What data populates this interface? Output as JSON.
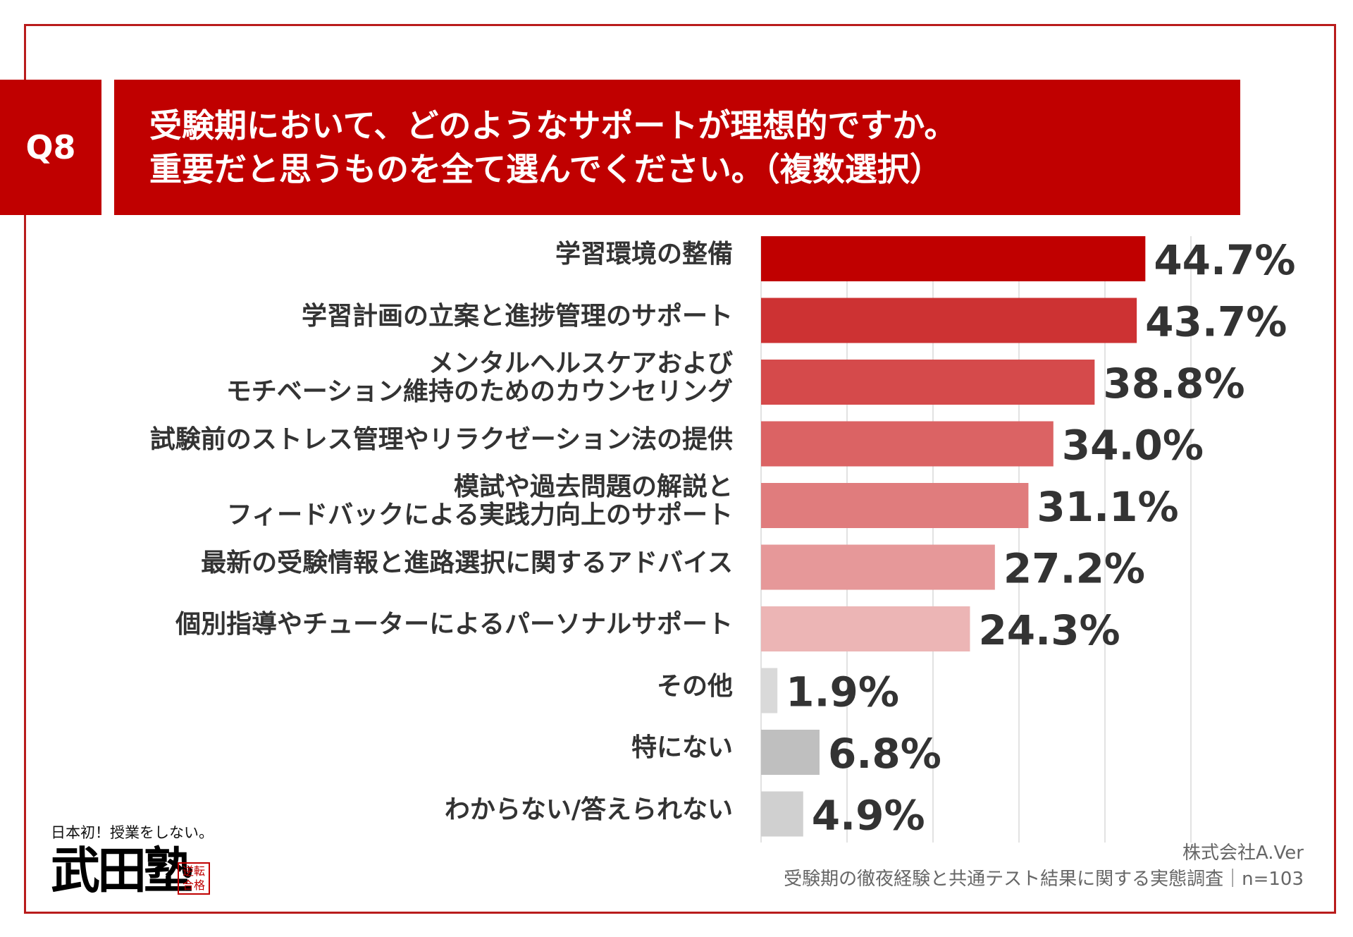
{
  "question": {
    "number": "Q8",
    "title_line1": "受験期において、どのようなサポートが理想的ですか。",
    "title_line2": "重要だと思うものを全て選んでください。（複数選択）"
  },
  "chart_data": {
    "type": "bar",
    "orientation": "horizontal",
    "categories": [
      [
        "学習環境の整備"
      ],
      [
        "学習計画の立案と進捗管理のサポート"
      ],
      [
        "メンタルヘルスケアおよび",
        "モチベーション維持のためのカウンセリング"
      ],
      [
        "試験前のストレス管理やリラクゼーション法の提供"
      ],
      [
        "模試や過去問題の解説と",
        "フィードバックによる実践力向上のサポート"
      ],
      [
        "最新の受験情報と進路選択に関するアドバイス"
      ],
      [
        "個別指導やチューターによるパーソナルサポート"
      ],
      [
        "その他"
      ],
      [
        "特にない"
      ],
      [
        "わからない/答えられない"
      ]
    ],
    "values": [
      44.7,
      43.7,
      38.8,
      34.0,
      31.1,
      27.2,
      24.3,
      1.9,
      6.8,
      4.9
    ],
    "value_labels": [
      "44.7%",
      "43.7%",
      "38.8%",
      "34.0%",
      "31.1%",
      "27.2%",
      "24.3%",
      "1.9%",
      "6.8%",
      "4.9%"
    ],
    "colors": [
      "#c00000",
      "#cd3233",
      "#d54a4b",
      "#db6364",
      "#e07c7d",
      "#e69899",
      "#ecb5b5",
      "#d9d9d9",
      "#bfbfbf",
      "#d0d0d0"
    ],
    "xlim": [
      0,
      50
    ],
    "grid": true,
    "grid_step": 10
  },
  "footer": {
    "company": "株式会社A.Ver",
    "survey": "受験期の徹夜経験と共通テスト結果に関する実態調査｜n=103"
  },
  "logo": {
    "tagline": "日本初！授業をしない。",
    "name": "武田塾",
    "seal": "逆転合格"
  }
}
